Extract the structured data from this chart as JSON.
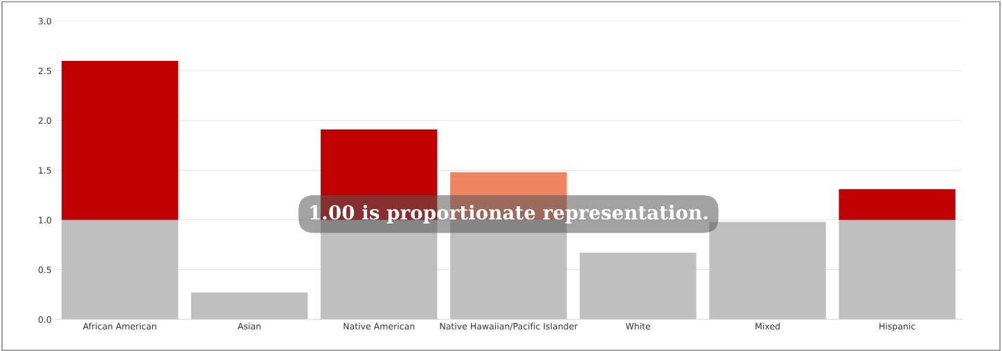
{
  "chart_data": {
    "type": "bar",
    "stacked": true,
    "categories": [
      "African American",
      "Asian",
      "Native American",
      "Native Hawaiian/Pacific Islander",
      "White",
      "Mixed",
      "Hispanic"
    ],
    "series": [
      {
        "color": "#bfbfbf",
        "values": [
          1.0,
          0.27,
          1.0,
          1.0,
          0.67,
          0.98,
          1.0
        ]
      },
      {
        "colors": [
          "#c00000",
          null,
          "#c00000",
          "#f08462",
          null,
          null,
          "#c00000"
        ],
        "values": [
          1.6,
          null,
          0.91,
          0.48,
          null,
          null,
          0.31
        ]
      }
    ],
    "ylim": [
      0,
      3
    ],
    "yticks": [
      {
        "value": 0,
        "label": "0.0"
      },
      {
        "value": 0.5,
        "label": "0.5"
      },
      {
        "value": 1,
        "label": "1.0"
      },
      {
        "value": 1.5,
        "label": "1.5"
      },
      {
        "value": 2,
        "label": "2.0"
      },
      {
        "value": 2.5,
        "label": "2.5"
      },
      {
        "value": 3,
        "label": "3.0"
      }
    ],
    "grid": "y",
    "legend": false,
    "annotations": [
      "1.00 is proportionate representation."
    ]
  }
}
